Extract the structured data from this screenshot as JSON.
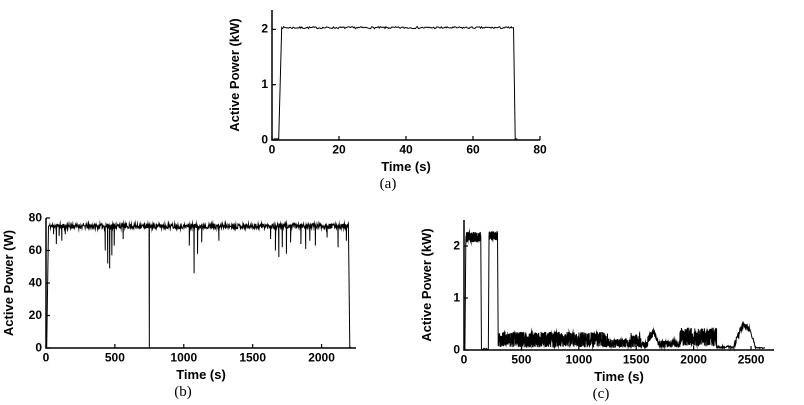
{
  "page": {
    "background": "#ffffff",
    "axis_color": "#000000",
    "line_color": "#000000"
  },
  "chart_data": [
    {
      "id": "a",
      "type": "line",
      "caption": "(a)",
      "xlabel": "Time (s)",
      "ylabel": "Active Power (kW)",
      "xlim": [
        0,
        80
      ],
      "ylim": [
        0,
        2.35
      ],
      "xticks": [
        0,
        20,
        40,
        60,
        80
      ],
      "yticks": [
        0,
        1,
        2
      ],
      "seed": 7,
      "series": [
        {
          "name": "active power",
          "summary": "Power rises from 0 to about 2 kW at t=2 s, stays flat near 2.03 kW until t=72 s, then drops back to 0.",
          "segments": [
            {
              "t0": 0.5,
              "t1": 2.0,
              "y0": 0.02,
              "y1": 0.02,
              "n": 2
            },
            {
              "t0": 2.0,
              "t1": 2.9,
              "y0": 0.02,
              "y1": 2.05,
              "n": 2
            },
            {
              "t0": 2.9,
              "t1": 71.4,
              "y0": 2.03,
              "y1": 2.03,
              "noise": 0.018,
              "n": 240
            },
            {
              "t0": 71.4,
              "t1": 72.1,
              "y0": 2.03,
              "y1": 2.03,
              "n": 2
            },
            {
              "t0": 72.1,
              "t1": 72.6,
              "y0": 2.03,
              "y1": 0.02,
              "n": 2
            },
            {
              "t0": 72.6,
              "t1": 73.2,
              "y0": 0.02,
              "y1": 0.02,
              "n": 2
            }
          ],
          "spike_from": 2.03,
          "spike_width": 0.3,
          "spikes": []
        }
      ]
    },
    {
      "id": "b",
      "type": "line",
      "caption": "(b)",
      "xlabel": "Time (s)",
      "ylabel": "Active Power (W)",
      "xlim": [
        0,
        2250
      ],
      "ylim": [
        0,
        80
      ],
      "xticks": [
        0,
        500,
        1000,
        1500,
        2000
      ],
      "yticks": [
        0,
        20,
        40,
        60,
        80
      ],
      "seed": 11,
      "series": [
        {
          "name": "active power",
          "summary": "Power holds near 75 W with many short downward dips (to ~45-70 W), one full dropout to 0 W near t=750 s, and a final drop to 0 at ~2200 s.",
          "segments": [
            {
              "t0": 5,
              "t1": 18,
              "y0": 0,
              "y1": 74.5,
              "n": 2
            },
            {
              "t0": 18,
              "t1": 2195,
              "y0": 75,
              "y1": 75,
              "noise": 1.6,
              "n": 850
            },
            {
              "t0": 2195,
              "t1": 2205,
              "y0": 75,
              "y1": 0,
              "n": 2
            },
            {
              "t0": 2205,
              "t1": 2215,
              "y0": 0.4,
              "y1": 0.4,
              "n": 2
            }
          ],
          "spike_from": 75,
          "spike_width": 5,
          "spikes": [
            [
              55,
              70
            ],
            [
              75,
              64
            ],
            [
              95,
              69
            ],
            [
              115,
              66
            ],
            [
              140,
              70
            ],
            [
              430,
              60
            ],
            [
              448,
              52
            ],
            [
              462,
              49
            ],
            [
              478,
              57
            ],
            [
              495,
              63
            ],
            [
              560,
              67
            ],
            [
              750,
              0
            ],
            [
              1040,
              63
            ],
            [
              1075,
              46
            ],
            [
              1100,
              58
            ],
            [
              1130,
              65
            ],
            [
              1255,
              66
            ],
            [
              1630,
              67
            ],
            [
              1665,
              60
            ],
            [
              1690,
              56
            ],
            [
              1715,
              62
            ],
            [
              1745,
              58
            ],
            [
              1775,
              65
            ],
            [
              1850,
              64
            ],
            [
              1885,
              61
            ],
            [
              1915,
              66
            ],
            [
              1955,
              63
            ],
            [
              2040,
              68
            ],
            [
              2120,
              62
            ],
            [
              2180,
              66
            ]
          ]
        }
      ]
    },
    {
      "id": "c",
      "type": "line",
      "caption": "(c)",
      "xlabel": "Time (s)",
      "ylabel": "Active Power (kW)",
      "xlim": [
        0,
        2700
      ],
      "ylim": [
        0,
        2.5
      ],
      "xticks": [
        0,
        500,
        1000,
        1500,
        2000,
        2500
      ],
      "yticks": [
        0,
        1,
        2
      ],
      "seed": 23,
      "series": [
        {
          "name": "active power",
          "summary": "Two high plateaus near 2.2 kW (0-150 s and 215-295 s) separated by a dropout to 0, then a long low noisy band of 0.05-0.4 kW bursts until ~2200 s, a quiet interval, a smooth hump to ~0.5 kW near 2400 s, and decay to 0 by ~2600 s.",
          "segments": [
            {
              "t0": 0,
              "t1": 8,
              "y0": 0.02,
              "y1": 0.02,
              "n": 2
            },
            {
              "t0": 8,
              "t1": 16,
              "y0": 0.02,
              "y1": 2.15,
              "n": 2
            },
            {
              "t0": 16,
              "t1": 146,
              "y0": 2.17,
              "y1": 2.17,
              "noise": 0.1,
              "n": 170
            },
            {
              "t0": 146,
              "t1": 152,
              "y0": 2.17,
              "y1": 0.02,
              "n": 2
            },
            {
              "t0": 152,
              "t1": 212,
              "y0": 0.02,
              "y1": 0.02,
              "noise": 0.012,
              "n": 12
            },
            {
              "t0": 212,
              "t1": 218,
              "y0": 0.02,
              "y1": 2.2,
              "n": 2
            },
            {
              "t0": 218,
              "t1": 292,
              "y0": 2.2,
              "y1": 2.2,
              "noise": 0.09,
              "n": 100
            },
            {
              "t0": 292,
              "t1": 298,
              "y0": 2.2,
              "y1": 0.08,
              "n": 2
            },
            {
              "t0": 298,
              "t1": 1250,
              "y0": 0.05,
              "y1": 0.05,
              "noise": 0.3,
              "mode": "up",
              "n": 800
            },
            {
              "t0": 1250,
              "t1": 1450,
              "y0": 0.04,
              "y1": 0.04,
              "noise": 0.18,
              "mode": "up",
              "n": 120
            },
            {
              "t0": 1450,
              "t1": 1540,
              "y0": 0.05,
              "y1": 0.05,
              "noise": 0.28,
              "mode": "up",
              "n": 70
            },
            {
              "t0": 1540,
              "t1": 1600,
              "y0": 0.04,
              "y1": 0.04,
              "noise": 0.12,
              "mode": "up",
              "n": 40
            },
            {
              "t0": 1600,
              "t1": 1660,
              "y0": 0.12,
              "y1": 0.3,
              "noise": 0.15,
              "mode": "up",
              "n": 50
            },
            {
              "t0": 1660,
              "t1": 1700,
              "y0": 0.25,
              "y1": 0.08,
              "noise": 0.1,
              "mode": "up",
              "n": 30
            },
            {
              "t0": 1700,
              "t1": 1880,
              "y0": 0.05,
              "y1": 0.05,
              "noise": 0.14,
              "mode": "up",
              "n": 90
            },
            {
              "t0": 1880,
              "t1": 2200,
              "y0": 0.08,
              "y1": 0.08,
              "noise": 0.35,
              "mode": "up",
              "n": 280
            },
            {
              "t0": 2200,
              "t1": 2350,
              "y0": 0.03,
              "y1": 0.03,
              "noise": 0.05,
              "mode": "up",
              "n": 40
            },
            {
              "t0": 2350,
              "t1": 2430,
              "y0": 0.08,
              "y1": 0.5,
              "noise": 0.06,
              "n": 40
            },
            {
              "t0": 2430,
              "t1": 2490,
              "y0": 0.5,
              "y1": 0.4,
              "noise": 0.05,
              "n": 25
            },
            {
              "t0": 2490,
              "t1": 2540,
              "y0": 0.4,
              "y1": 0.04,
              "noise": 0.03,
              "n": 12
            },
            {
              "t0": 2540,
              "t1": 2620,
              "y0": 0.03,
              "y1": 0.03,
              "noise": 0.02,
              "mode": "up",
              "n": 20
            }
          ],
          "spike_from": 0,
          "spike_width": 1,
          "spikes": []
        }
      ]
    }
  ]
}
